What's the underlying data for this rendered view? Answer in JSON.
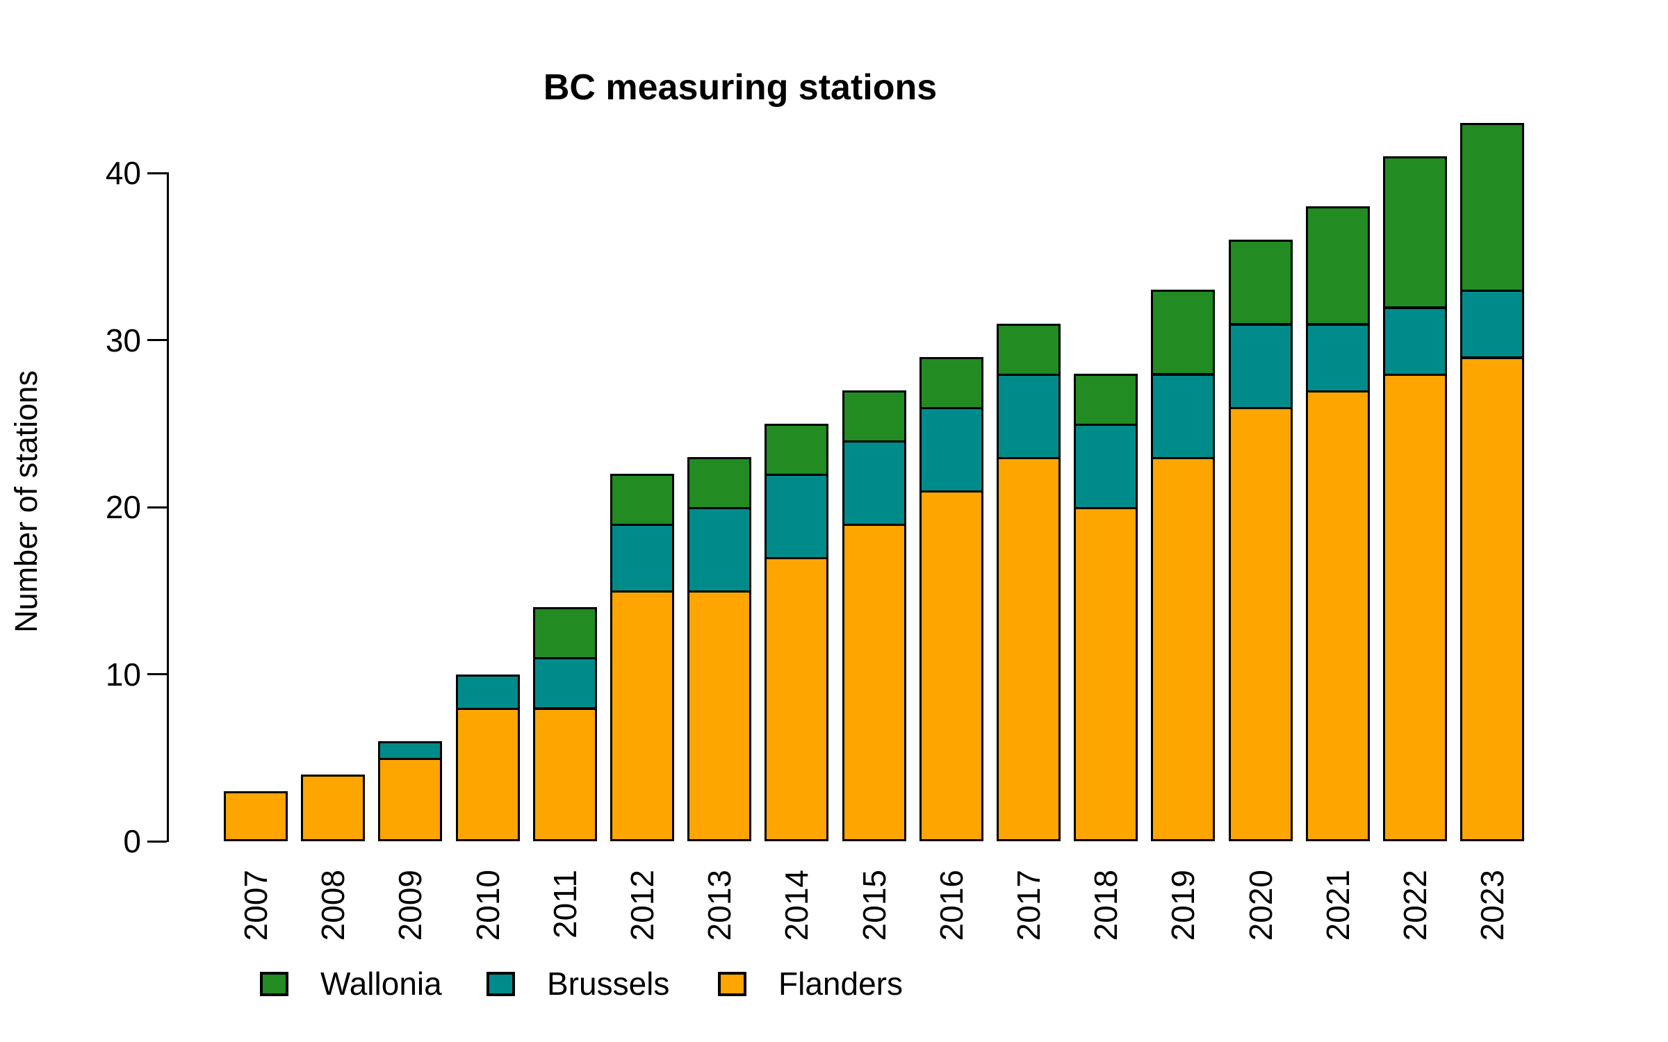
{
  "title": "BC measuring stations",
  "y_axis": {
    "label": "Number of stations",
    "ticks": [
      0,
      10,
      20,
      30,
      40
    ]
  },
  "legend": [
    {
      "label": "Wallonia",
      "color": "#228B22"
    },
    {
      "label": "Brussels",
      "color": "#008B8B"
    },
    {
      "label": "Flanders",
      "color": "#FFA500"
    }
  ],
  "colors": {
    "wallonia": "#228B22",
    "brussels": "#008B8B",
    "flanders": "#FFA500",
    "bar_border": "#000000"
  },
  "chart_data": {
    "type": "bar",
    "stacked": true,
    "title": "BC measuring stations",
    "xlabel": "",
    "ylabel": "Number of stations",
    "ylim": [
      0,
      43
    ],
    "y_ticks": [
      0,
      10,
      20,
      30,
      40
    ],
    "grid": false,
    "legend_position": "bottom",
    "categories": [
      "2007",
      "2008",
      "2009",
      "2010",
      "2011",
      "2012",
      "2013",
      "2014",
      "2015",
      "2016",
      "2017",
      "2018",
      "2019",
      "2020",
      "2021",
      "2022",
      "2023"
    ],
    "series": [
      {
        "name": "Flanders",
        "color": "#FFA500",
        "values": [
          3,
          4,
          5,
          8,
          8,
          15,
          15,
          17,
          19,
          21,
          23,
          20,
          23,
          26,
          27,
          28,
          29
        ]
      },
      {
        "name": "Brussels",
        "color": "#008B8B",
        "values": [
          0,
          0,
          1,
          2,
          3,
          4,
          5,
          5,
          5,
          5,
          5,
          5,
          5,
          5,
          4,
          4,
          4
        ]
      },
      {
        "name": "Wallonia",
        "color": "#228B22",
        "values": [
          0,
          0,
          0,
          0,
          3,
          3,
          3,
          3,
          3,
          3,
          3,
          3,
          5,
          5,
          7,
          9,
          10
        ]
      }
    ],
    "totals": [
      3,
      4,
      6,
      10,
      14,
      22,
      23,
      25,
      27,
      29,
      31,
      28,
      33,
      36,
      38,
      41,
      43
    ]
  }
}
